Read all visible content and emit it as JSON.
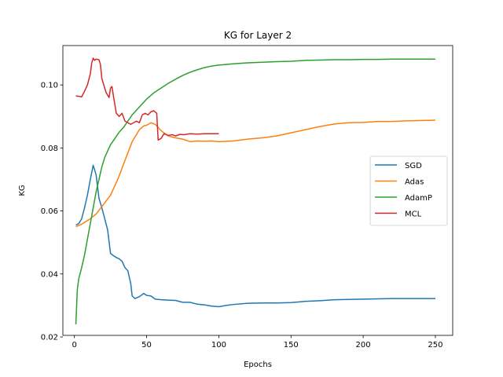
{
  "chart_data": {
    "type": "line",
    "title": "KG for Layer 2",
    "xlabel": "Epochs",
    "ylabel": "KG",
    "xlim": [
      -8,
      262
    ],
    "ylim": [
      0.0205,
      0.1125
    ],
    "xticks": [
      0,
      50,
      100,
      150,
      200,
      250
    ],
    "xtick_labels": [
      "0",
      "50",
      "100",
      "150",
      "200",
      "250"
    ],
    "yticks": [
      0.02,
      0.04,
      0.06,
      0.08,
      0.1
    ],
    "ytick_labels": [
      "0.02",
      "0.04",
      "0.06",
      "0.08",
      "0.10"
    ],
    "grid": false,
    "legend_position": "center-right",
    "series": [
      {
        "name": "SGD",
        "color": "#1f77b4",
        "points": [
          [
            1,
            0.0555
          ],
          [
            3,
            0.056
          ],
          [
            5,
            0.0575
          ],
          [
            7,
            0.061
          ],
          [
            9,
            0.065
          ],
          [
            11,
            0.07
          ],
          [
            13,
            0.0745
          ],
          [
            15,
            0.0715
          ],
          [
            17,
            0.064
          ],
          [
            19,
            0.061
          ],
          [
            21,
            0.0575
          ],
          [
            23,
            0.054
          ],
          [
            25,
            0.0465
          ],
          [
            27,
            0.0458
          ],
          [
            29,
            0.0452
          ],
          [
            31,
            0.0448
          ],
          [
            33,
            0.044
          ],
          [
            35,
            0.042
          ],
          [
            37,
            0.041
          ],
          [
            39,
            0.037
          ],
          [
            40,
            0.033
          ],
          [
            42,
            0.0322
          ],
          [
            45,
            0.0328
          ],
          [
            48,
            0.0338
          ],
          [
            50,
            0.0332
          ],
          [
            53,
            0.033
          ],
          [
            56,
            0.032
          ],
          [
            60,
            0.0318
          ],
          [
            65,
            0.0317
          ],
          [
            70,
            0.0316
          ],
          [
            75,
            0.031
          ],
          [
            80,
            0.031
          ],
          [
            85,
            0.0304
          ],
          [
            90,
            0.0302
          ],
          [
            95,
            0.0298
          ],
          [
            100,
            0.0296
          ],
          [
            105,
            0.03
          ],
          [
            110,
            0.0303
          ],
          [
            120,
            0.0307
          ],
          [
            130,
            0.0308
          ],
          [
            140,
            0.0308
          ],
          [
            150,
            0.0309
          ],
          [
            160,
            0.0313
          ],
          [
            170,
            0.0315
          ],
          [
            180,
            0.0318
          ],
          [
            190,
            0.0319
          ],
          [
            200,
            0.032
          ],
          [
            210,
            0.0321
          ],
          [
            220,
            0.0322
          ],
          [
            230,
            0.0322
          ],
          [
            240,
            0.0322
          ],
          [
            250,
            0.0322
          ]
        ]
      },
      {
        "name": "Adas",
        "color": "#ff7f0e",
        "points": [
          [
            1,
            0.055
          ],
          [
            5,
            0.0558
          ],
          [
            10,
            0.0572
          ],
          [
            15,
            0.059
          ],
          [
            20,
            0.062
          ],
          [
            25,
            0.065
          ],
          [
            30,
            0.07
          ],
          [
            35,
            0.076
          ],
          [
            40,
            0.082
          ],
          [
            45,
            0.0858
          ],
          [
            48,
            0.087
          ],
          [
            50,
            0.0872
          ],
          [
            53,
            0.088
          ],
          [
            56,
            0.0875
          ],
          [
            60,
            0.0855
          ],
          [
            65,
            0.0838
          ],
          [
            70,
            0.0832
          ],
          [
            75,
            0.0828
          ],
          [
            80,
            0.082
          ],
          [
            85,
            0.0822
          ],
          [
            90,
            0.0821
          ],
          [
            95,
            0.0822
          ],
          [
            100,
            0.082
          ],
          [
            110,
            0.0822
          ],
          [
            120,
            0.0828
          ],
          [
            130,
            0.0832
          ],
          [
            140,
            0.0838
          ],
          [
            150,
            0.0848
          ],
          [
            160,
            0.0858
          ],
          [
            170,
            0.0868
          ],
          [
            180,
            0.0876
          ],
          [
            190,
            0.088
          ],
          [
            200,
            0.0881
          ],
          [
            210,
            0.0884
          ],
          [
            220,
            0.0884
          ],
          [
            230,
            0.0886
          ],
          [
            240,
            0.0887
          ],
          [
            250,
            0.0888
          ]
        ]
      },
      {
        "name": "AdamP",
        "color": "#2ca02c",
        "points": [
          [
            1,
            0.024
          ],
          [
            2,
            0.035
          ],
          [
            3,
            0.0385
          ],
          [
            5,
            0.042
          ],
          [
            7,
            0.046
          ],
          [
            9,
            0.051
          ],
          [
            11,
            0.056
          ],
          [
            13,
            0.061
          ],
          [
            15,
            0.066
          ],
          [
            17,
            0.07
          ],
          [
            19,
            0.074
          ],
          [
            21,
            0.077
          ],
          [
            23,
            0.079
          ],
          [
            25,
            0.081
          ],
          [
            28,
            0.083
          ],
          [
            31,
            0.085
          ],
          [
            34,
            0.0865
          ],
          [
            37,
            0.0885
          ],
          [
            40,
            0.0905
          ],
          [
            43,
            0.092
          ],
          [
            46,
            0.0935
          ],
          [
            50,
            0.0955
          ],
          [
            55,
            0.0975
          ],
          [
            60,
            0.099
          ],
          [
            65,
            0.1005
          ],
          [
            70,
            0.1018
          ],
          [
            75,
            0.103
          ],
          [
            80,
            0.104
          ],
          [
            85,
            0.1048
          ],
          [
            90,
            0.1055
          ],
          [
            95,
            0.106
          ],
          [
            100,
            0.1063
          ],
          [
            110,
            0.1067
          ],
          [
            120,
            0.107
          ],
          [
            130,
            0.1072
          ],
          [
            140,
            0.1074
          ],
          [
            150,
            0.1075
          ],
          [
            160,
            0.1078
          ],
          [
            170,
            0.1079
          ],
          [
            180,
            0.108
          ],
          [
            190,
            0.108
          ],
          [
            200,
            0.1081
          ],
          [
            210,
            0.1081
          ],
          [
            220,
            0.1082
          ],
          [
            230,
            0.1082
          ],
          [
            240,
            0.1082
          ],
          [
            250,
            0.1082
          ]
        ]
      },
      {
        "name": "MCL",
        "color": "#d62728",
        "points": [
          [
            1,
            0.0965
          ],
          [
            3,
            0.0964
          ],
          [
            5,
            0.0962
          ],
          [
            7,
            0.098
          ],
          [
            9,
            0.1
          ],
          [
            11,
            0.1035
          ],
          [
            12,
            0.107
          ],
          [
            13,
            0.1085
          ],
          [
            14,
            0.1078
          ],
          [
            15,
            0.1082
          ],
          [
            17,
            0.108
          ],
          [
            18,
            0.1065
          ],
          [
            19,
            0.102
          ],
          [
            20,
            0.1005
          ],
          [
            22,
            0.0975
          ],
          [
            24,
            0.096
          ],
          [
            25,
            0.099
          ],
          [
            26,
            0.0995
          ],
          [
            27,
            0.0965
          ],
          [
            29,
            0.091
          ],
          [
            31,
            0.09
          ],
          [
            33,
            0.091
          ],
          [
            35,
            0.0885
          ],
          [
            37,
            0.088
          ],
          [
            39,
            0.0875
          ],
          [
            41,
            0.088
          ],
          [
            43,
            0.0885
          ],
          [
            45,
            0.088
          ],
          [
            47,
            0.0905
          ],
          [
            49,
            0.091
          ],
          [
            51,
            0.0905
          ],
          [
            53,
            0.0915
          ],
          [
            55,
            0.0918
          ],
          [
            57,
            0.091
          ],
          [
            58,
            0.0825
          ],
          [
            60,
            0.083
          ],
          [
            62,
            0.0845
          ],
          [
            65,
            0.084
          ],
          [
            68,
            0.0842
          ],
          [
            70,
            0.0838
          ],
          [
            73,
            0.0843
          ],
          [
            76,
            0.0842
          ],
          [
            80,
            0.0845
          ],
          [
            85,
            0.0844
          ],
          [
            90,
            0.0845
          ],
          [
            95,
            0.0845
          ],
          [
            100,
            0.0845
          ]
        ]
      }
    ]
  }
}
